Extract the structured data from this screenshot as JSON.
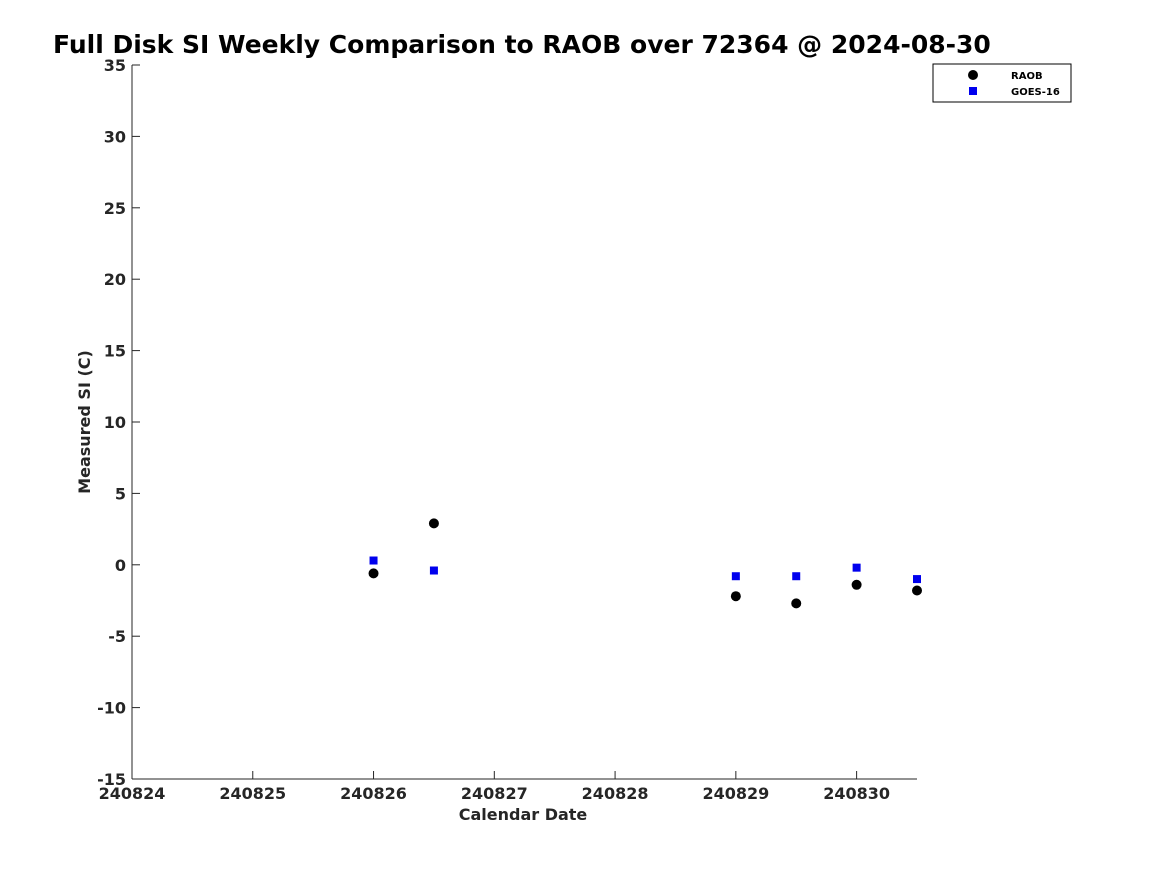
{
  "chart_data": {
    "type": "scatter",
    "title": "Full Disk SI Weekly Comparison to RAOB over 72364 @ 2024-08-30",
    "xlabel": "Calendar Date",
    "ylabel": "Measured SI (C)",
    "xlim": [
      240824,
      240830.5
    ],
    "ylim": [
      -15,
      35
    ],
    "xticks": [
      240824,
      240825,
      240826,
      240827,
      240828,
      240829,
      240830
    ],
    "xtick_labels": [
      "240824",
      "240825",
      "240826",
      "240827",
      "240828",
      "240829",
      "240830"
    ],
    "yticks": [
      -15,
      -10,
      -5,
      0,
      5,
      10,
      15,
      20,
      25,
      30,
      35
    ],
    "ytick_labels": [
      "-15",
      "-10",
      "-5",
      "0",
      "5",
      "10",
      "15",
      "20",
      "25",
      "30",
      "35"
    ],
    "grid": false,
    "legend_position": "top-right",
    "series": [
      {
        "name": "RAOB",
        "marker": "circle",
        "color": "#000000",
        "points": [
          {
            "x": 240826.0,
            "y": -0.6
          },
          {
            "x": 240826.5,
            "y": 2.9
          },
          {
            "x": 240829.0,
            "y": -2.2
          },
          {
            "x": 240829.5,
            "y": -2.7
          },
          {
            "x": 240830.0,
            "y": -1.4
          },
          {
            "x": 240830.5,
            "y": -1.8
          }
        ]
      },
      {
        "name": "GOES-16",
        "marker": "square",
        "color": "#0000ee",
        "points": [
          {
            "x": 240826.0,
            "y": 0.3
          },
          {
            "x": 240826.5,
            "y": -0.4
          },
          {
            "x": 240829.0,
            "y": -0.8
          },
          {
            "x": 240829.5,
            "y": -0.8
          },
          {
            "x": 240830.0,
            "y": -0.2
          },
          {
            "x": 240830.5,
            "y": -1.0
          }
        ]
      }
    ]
  }
}
